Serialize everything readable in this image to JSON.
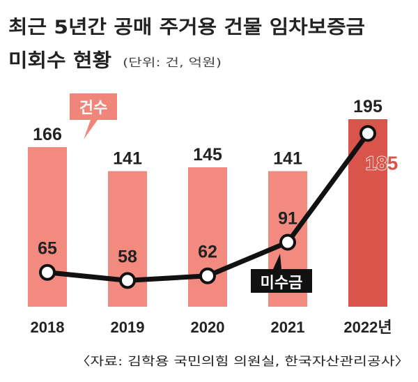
{
  "title_line1": "최근 5년간 공매 주거용 건물 임차보증금",
  "title_line2": "미회수 현황",
  "unit": "(단위: 건, 억원)",
  "source": "〈자료: 김학용 국민의힘 의원실, 한국자산관리공사〉",
  "legend_bar": "건수",
  "legend_line": "미수금",
  "colors": {
    "bar": "#f28a80",
    "bar_highlight": "#d9544b",
    "legend_bar_bg": "#f0857a",
    "line": "#111111",
    "highlight_text": "#d9544b"
  },
  "chart_data": {
    "type": "bar",
    "categories": [
      "2018",
      "2019",
      "2020",
      "2021",
      "2022년"
    ],
    "series": [
      {
        "name": "건수",
        "type": "bar",
        "values": [
          166,
          141,
          145,
          141,
          195
        ]
      },
      {
        "name": "미수금",
        "type": "line",
        "values": [
          65,
          58,
          62,
          91,
          185
        ]
      }
    ]
  }
}
